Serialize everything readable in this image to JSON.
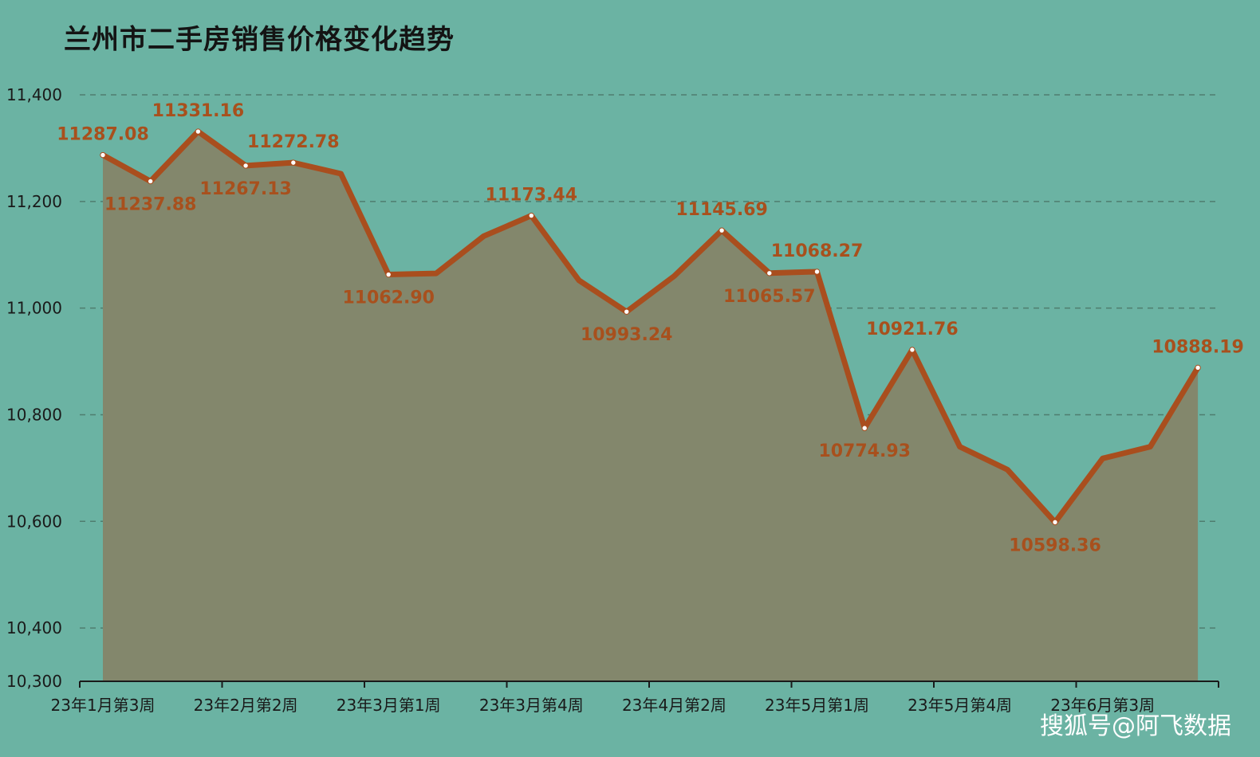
{
  "watermark": "搜狐号@阿飞数据",
  "colors": {
    "background": "#6bb3a3",
    "area_fill": "#83876c",
    "line": "#a94e1e",
    "label": "#a8501d",
    "grid": "#4f7d6f",
    "axis": "#1a1a1a"
  },
  "chart_data": {
    "type": "area",
    "title": "兰州市二手房销售价格变化趋势",
    "xlabel": "",
    "ylabel": "",
    "ylim": [
      10300,
      11400
    ],
    "yticks": [
      10300,
      10400,
      10600,
      10800,
      11000,
      11200,
      11400
    ],
    "ytick_labels": [
      "10,300",
      "10,400",
      "10,600",
      "10,800",
      "11,000",
      "11,200",
      "11,400"
    ],
    "grid": true,
    "xtick_labels": [
      {
        "index": 0,
        "label": "23年1月第3周"
      },
      {
        "index": 3,
        "label": "23年2月第2周"
      },
      {
        "index": 6,
        "label": "23年3月第1周"
      },
      {
        "index": 9,
        "label": "23年3月第4周"
      },
      {
        "index": 12,
        "label": "23年4月第2周"
      },
      {
        "index": 15,
        "label": "23年5月第1周"
      },
      {
        "index": 18,
        "label": "23年5月第4周"
      },
      {
        "index": 21,
        "label": "23年6月第3周"
      }
    ],
    "values": [
      11287.08,
      11237.88,
      11331.16,
      11267.13,
      11272.78,
      11252,
      11062.9,
      11065,
      11135,
      11173.44,
      11052,
      10993.24,
      11060,
      11145.69,
      11065.57,
      11068.27,
      10774.93,
      10921.76,
      10740,
      10697,
      10598.36,
      10718,
      10740,
      10888.19
    ],
    "data_labels": [
      {
        "index": 0,
        "text": "11287.08",
        "pos": "above"
      },
      {
        "index": 1,
        "text": "11237.88",
        "pos": "below"
      },
      {
        "index": 2,
        "text": "11331.16",
        "pos": "above"
      },
      {
        "index": 3,
        "text": "11267.13",
        "pos": "below"
      },
      {
        "index": 4,
        "text": "11272.78",
        "pos": "above"
      },
      {
        "index": 6,
        "text": "11062.90",
        "pos": "below"
      },
      {
        "index": 9,
        "text": "11173.44",
        "pos": "above"
      },
      {
        "index": 11,
        "text": "10993.24",
        "pos": "below"
      },
      {
        "index": 13,
        "text": "11145.69",
        "pos": "above"
      },
      {
        "index": 14,
        "text": "11065.57",
        "pos": "below"
      },
      {
        "index": 15,
        "text": "11068.27",
        "pos": "above"
      },
      {
        "index": 16,
        "text": "10774.93",
        "pos": "below"
      },
      {
        "index": 17,
        "text": "10921.76",
        "pos": "above"
      },
      {
        "index": 20,
        "text": "10598.36",
        "pos": "below"
      },
      {
        "index": 23,
        "text": "10888.19",
        "pos": "above"
      }
    ]
  }
}
